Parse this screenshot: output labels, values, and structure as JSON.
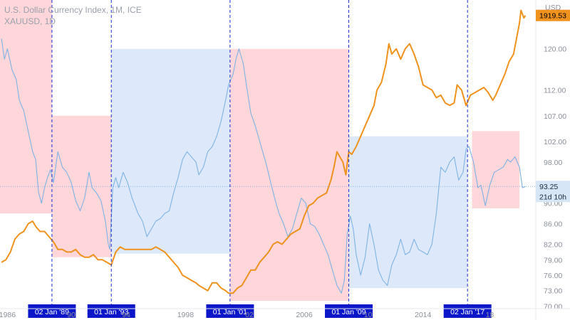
{
  "chart_data": {
    "type": "line",
    "title": "U.S. Dollar Currency Index, 1M, ICE",
    "subtitle": "XAUUSD, 1D",
    "currency_label": "USD",
    "x_range": [
      1985.5,
      2021.6
    ],
    "y_range": [
      69.5,
      129.5
    ],
    "y_ticks": [
      {
        "value": 73.0,
        "label": "73.00"
      },
      {
        "value": 76.0,
        "label": "76.00"
      },
      {
        "value": 79.0,
        "label": "79.00"
      },
      {
        "value": 82.0,
        "label": "82.00"
      },
      {
        "value": 86.0,
        "label": "86.00"
      },
      {
        "value": 90.0,
        "label": "90.00"
      },
      {
        "value": 98.0,
        "label": "98.00"
      },
      {
        "value": 102.0,
        "label": "102.00"
      },
      {
        "value": 107.0,
        "label": "107.00"
      },
      {
        "value": 112.0,
        "label": "112.00"
      },
      {
        "value": 120.0,
        "label": "120.00"
      },
      {
        "value": 70.0,
        "label": "70.00"
      }
    ],
    "x_ticks": [
      {
        "value": 1986.0,
        "label": "1986"
      },
      {
        "value": 1998.0,
        "label": "1998"
      },
      {
        "value": 2006.0,
        "label": "2006"
      },
      {
        "value": 2014.0,
        "label": "2014"
      }
    ],
    "x_ticks_partial": [
      {
        "value": 1990.3,
        "label": "90"
      },
      {
        "value": 1994.0,
        "label": "94"
      },
      {
        "value": 2002.3,
        "label": "02"
      },
      {
        "value": 2010.3,
        "label": "10"
      },
      {
        "value": 2018.5,
        "label": "18"
      }
    ],
    "markers": [
      {
        "label": "02 Jan '89",
        "x": 1989.0
      },
      {
        "label": "01 Jan '93",
        "x": 1993.0
      },
      {
        "label": "01 Jan '01",
        "x": 2001.0
      },
      {
        "label": "01 Jan '09",
        "x": 2009.0
      },
      {
        "label": "02 Jan '17",
        "x": 2017.0
      }
    ],
    "regions": [
      {
        "x0": 1985.5,
        "x1": 1989.0,
        "y0": 88.0,
        "y1": 131.0,
        "color": "#ffd6da"
      },
      {
        "x0": 1989.0,
        "x1": 1993.0,
        "y0": 79.5,
        "y1": 107.0,
        "color": "#ffd6da"
      },
      {
        "x0": 1993.0,
        "x1": 2001.0,
        "y0": 80.2,
        "y1": 120.0,
        "color": "#dde9fa"
      },
      {
        "x0": 2001.0,
        "x1": 2009.0,
        "y0": 71.0,
        "y1": 120.0,
        "color": "#ffd6da"
      },
      {
        "x0": 2009.0,
        "x1": 2017.0,
        "y0": 73.5,
        "y1": 103.0,
        "color": "#dde9fa"
      },
      {
        "x0": 2017.3,
        "x1": 2020.5,
        "y0": 89.0,
        "y1": 104.0,
        "color": "#ffd6da"
      }
    ],
    "series": [
      {
        "name": "U.S. Dollar Currency Index, 1M, ICE",
        "color": "#7fb3e3",
        "points": [
          [
            1985.6,
            122.0
          ],
          [
            1985.8,
            118.0
          ],
          [
            1986.0,
            120.0
          ],
          [
            1986.3,
            116.0
          ],
          [
            1986.6,
            114.0
          ],
          [
            1986.8,
            110.0
          ],
          [
            1987.1,
            108.0
          ],
          [
            1987.4,
            104.0
          ],
          [
            1987.7,
            100.0
          ],
          [
            1987.9,
            98.5
          ],
          [
            1988.1,
            92.0
          ],
          [
            1988.3,
            90.0
          ],
          [
            1988.5,
            93.0
          ],
          [
            1988.7,
            95.0
          ],
          [
            1988.9,
            96.5
          ],
          [
            1989.1,
            94.0
          ],
          [
            1989.4,
            100.0
          ],
          [
            1989.7,
            97.0
          ],
          [
            1990.0,
            96.0
          ],
          [
            1990.3,
            94.0
          ],
          [
            1990.6,
            90.5
          ],
          [
            1990.9,
            88.5
          ],
          [
            1991.2,
            91.0
          ],
          [
            1991.5,
            96.0
          ],
          [
            1991.7,
            93.0
          ],
          [
            1992.0,
            92.0
          ],
          [
            1992.3,
            90.5
          ],
          [
            1992.6,
            86.5
          ],
          [
            1992.8,
            82.0
          ],
          [
            1992.9,
            81.0
          ],
          [
            1993.1,
            93.0
          ],
          [
            1993.3,
            95.0
          ],
          [
            1993.5,
            93.0
          ],
          [
            1993.8,
            96.0
          ],
          [
            1994.1,
            94.0
          ],
          [
            1994.4,
            91.0
          ],
          [
            1994.8,
            88.0
          ],
          [
            1995.1,
            86.5
          ],
          [
            1995.4,
            83.5
          ],
          [
            1995.7,
            85.0
          ],
          [
            1996.0,
            86.5
          ],
          [
            1996.3,
            87.0
          ],
          [
            1996.6,
            88.0
          ],
          [
            1996.9,
            88.5
          ],
          [
            1997.2,
            92.0
          ],
          [
            1997.5,
            95.0
          ],
          [
            1997.8,
            98.5
          ],
          [
            1998.1,
            100.0
          ],
          [
            1998.4,
            99.0
          ],
          [
            1998.7,
            98.0
          ],
          [
            1998.9,
            95.5
          ],
          [
            1999.2,
            97.0
          ],
          [
            1999.5,
            100.0
          ],
          [
            1999.8,
            101.0
          ],
          [
            2000.1,
            103.0
          ],
          [
            2000.4,
            106.0
          ],
          [
            2000.7,
            110.0
          ],
          [
            2000.9,
            113.0
          ],
          [
            2001.2,
            115.0
          ],
          [
            2001.4,
            118.0
          ],
          [
            2001.6,
            120.0
          ],
          [
            2001.9,
            117.0
          ],
          [
            2002.1,
            113.0
          ],
          [
            2002.4,
            107.5
          ],
          [
            2002.7,
            105.0
          ],
          [
            2002.9,
            103.0
          ],
          [
            2003.2,
            100.0
          ],
          [
            2003.4,
            98.0
          ],
          [
            2003.7,
            94.5
          ],
          [
            2004.0,
            91.0
          ],
          [
            2004.3,
            88.0
          ],
          [
            2004.6,
            86.0
          ],
          [
            2004.9,
            83.5
          ],
          [
            2005.2,
            85.0
          ],
          [
            2005.5,
            88.0
          ],
          [
            2005.8,
            91.0
          ],
          [
            2006.1,
            90.0
          ],
          [
            2006.4,
            86.0
          ],
          [
            2006.7,
            85.5
          ],
          [
            2007.0,
            84.0
          ],
          [
            2007.3,
            82.0
          ],
          [
            2007.6,
            80.0
          ],
          [
            2007.9,
            77.0
          ],
          [
            2008.2,
            74.0
          ],
          [
            2008.5,
            72.5
          ],
          [
            2008.7,
            75.0
          ],
          [
            2008.9,
            84.0
          ],
          [
            2009.1,
            87.5
          ],
          [
            2009.3,
            85.0
          ],
          [
            2009.5,
            80.0
          ],
          [
            2009.8,
            76.0
          ],
          [
            2010.1,
            79.5
          ],
          [
            2010.4,
            86.0
          ],
          [
            2010.7,
            82.0
          ],
          [
            2011.0,
            77.0
          ],
          [
            2011.3,
            75.0
          ],
          [
            2011.6,
            74.0
          ],
          [
            2011.9,
            78.0
          ],
          [
            2012.2,
            80.0
          ],
          [
            2012.5,
            83.0
          ],
          [
            2012.8,
            80.0
          ],
          [
            2013.1,
            80.5
          ],
          [
            2013.4,
            83.0
          ],
          [
            2013.7,
            81.0
          ],
          [
            2014.0,
            80.5
          ],
          [
            2014.3,
            80.0
          ],
          [
            2014.6,
            82.0
          ],
          [
            2014.9,
            88.0
          ],
          [
            2015.2,
            97.0
          ],
          [
            2015.5,
            96.0
          ],
          [
            2015.8,
            98.0
          ],
          [
            2016.1,
            99.0
          ],
          [
            2016.4,
            94.5
          ],
          [
            2016.7,
            96.0
          ],
          [
            2016.9,
            100.5
          ],
          [
            2017.1,
            101.0
          ],
          [
            2017.4,
            98.0
          ],
          [
            2017.7,
            93.0
          ],
          [
            2017.9,
            93.5
          ],
          [
            2018.2,
            89.5
          ],
          [
            2018.5,
            93.5
          ],
          [
            2018.8,
            96.0
          ],
          [
            2019.1,
            96.5
          ],
          [
            2019.4,
            97.0
          ],
          [
            2019.7,
            98.5
          ],
          [
            2019.9,
            98.0
          ],
          [
            2020.2,
            99.0
          ],
          [
            2020.5,
            97.0
          ],
          [
            2020.7,
            93.0
          ],
          [
            2020.9,
            93.25
          ]
        ]
      },
      {
        "name": "XAUUSD, 1D",
        "color": "#f0921e",
        "points": [
          [
            1985.6,
            78.5
          ],
          [
            1985.9,
            79.0
          ],
          [
            1986.2,
            80.5
          ],
          [
            1986.5,
            83.0
          ],
          [
            1986.8,
            84.0
          ],
          [
            1987.1,
            84.5
          ],
          [
            1987.4,
            86.0
          ],
          [
            1987.7,
            86.5
          ],
          [
            1987.9,
            85.5
          ],
          [
            1988.2,
            84.5
          ],
          [
            1988.5,
            84.5
          ],
          [
            1988.8,
            83.5
          ],
          [
            1989.1,
            82.5
          ],
          [
            1989.4,
            81.0
          ],
          [
            1989.7,
            81.0
          ],
          [
            1990.0,
            80.5
          ],
          [
            1990.3,
            80.5
          ],
          [
            1990.6,
            81.0
          ],
          [
            1990.9,
            80.0
          ],
          [
            1991.2,
            79.5
          ],
          [
            1991.5,
            79.5
          ],
          [
            1991.8,
            80.0
          ],
          [
            1992.1,
            79.0
          ],
          [
            1992.4,
            79.0
          ],
          [
            1992.7,
            78.5
          ],
          [
            1993.0,
            78.0
          ],
          [
            1993.3,
            80.5
          ],
          [
            1993.6,
            81.5
          ],
          [
            1993.9,
            81.0
          ],
          [
            1994.2,
            81.0
          ],
          [
            1994.5,
            81.0
          ],
          [
            1994.8,
            81.0
          ],
          [
            1995.1,
            81.0
          ],
          [
            1995.4,
            81.0
          ],
          [
            1995.7,
            81.0
          ],
          [
            1996.0,
            81.5
          ],
          [
            1996.3,
            81.0
          ],
          [
            1996.6,
            80.5
          ],
          [
            1996.9,
            79.5
          ],
          [
            1997.2,
            78.5
          ],
          [
            1997.5,
            77.5
          ],
          [
            1997.8,
            76.0
          ],
          [
            1998.1,
            75.5
          ],
          [
            1998.4,
            75.0
          ],
          [
            1998.7,
            74.5
          ],
          [
            1998.9,
            74.0
          ],
          [
            1999.2,
            73.5
          ],
          [
            1999.5,
            73.0
          ],
          [
            1999.8,
            74.5
          ],
          [
            2000.1,
            74.5
          ],
          [
            2000.4,
            73.5
          ],
          [
            2000.7,
            73.0
          ],
          [
            2000.9,
            72.5
          ],
          [
            2001.2,
            72.5
          ],
          [
            2001.5,
            73.5
          ],
          [
            2001.8,
            74.0
          ],
          [
            2002.1,
            75.5
          ],
          [
            2002.4,
            77.0
          ],
          [
            2002.7,
            77.0
          ],
          [
            2003.0,
            78.5
          ],
          [
            2003.3,
            79.5
          ],
          [
            2003.6,
            80.5
          ],
          [
            2003.9,
            82.0
          ],
          [
            2004.2,
            82.5
          ],
          [
            2004.5,
            82.0
          ],
          [
            2004.8,
            83.0
          ],
          [
            2005.1,
            84.0
          ],
          [
            2005.4,
            84.5
          ],
          [
            2005.7,
            85.0
          ],
          [
            2006.0,
            87.5
          ],
          [
            2006.3,
            89.5
          ],
          [
            2006.6,
            90.0
          ],
          [
            2006.9,
            91.0
          ],
          [
            2007.2,
            91.5
          ],
          [
            2007.5,
            92.0
          ],
          [
            2007.8,
            94.5
          ],
          [
            2008.0,
            97.0
          ],
          [
            2008.2,
            100.0
          ],
          [
            2008.4,
            99.0
          ],
          [
            2008.6,
            98.0
          ],
          [
            2008.8,
            95.5
          ],
          [
            2009.0,
            100.0
          ],
          [
            2009.2,
            99.5
          ],
          [
            2009.5,
            101.0
          ],
          [
            2009.8,
            103.0
          ],
          [
            2010.1,
            105.0
          ],
          [
            2010.4,
            107.0
          ],
          [
            2010.7,
            109.0
          ],
          [
            2010.9,
            112.0
          ],
          [
            2011.2,
            113.5
          ],
          [
            2011.5,
            117.0
          ],
          [
            2011.7,
            121.0
          ],
          [
            2011.9,
            119.0
          ],
          [
            2012.2,
            120.0
          ],
          [
            2012.5,
            118.0
          ],
          [
            2012.8,
            120.0
          ],
          [
            2013.1,
            121.0
          ],
          [
            2013.4,
            119.0
          ],
          [
            2013.7,
            116.5
          ],
          [
            2014.0,
            113.0
          ],
          [
            2014.3,
            112.5
          ],
          [
            2014.6,
            112.0
          ],
          [
            2014.9,
            110.5
          ],
          [
            2015.2,
            111.0
          ],
          [
            2015.5,
            109.5
          ],
          [
            2015.8,
            109.0
          ],
          [
            2016.1,
            109.5
          ],
          [
            2016.3,
            113.0
          ],
          [
            2016.6,
            112.0
          ],
          [
            2016.9,
            109.0
          ],
          [
            2017.2,
            111.0
          ],
          [
            2017.5,
            111.5
          ],
          [
            2017.8,
            112.0
          ],
          [
            2018.1,
            112.5
          ],
          [
            2018.4,
            111.5
          ],
          [
            2018.7,
            110.0
          ],
          [
            2018.9,
            111.0
          ],
          [
            2019.2,
            113.0
          ],
          [
            2019.5,
            115.0
          ],
          [
            2019.8,
            117.5
          ],
          [
            2020.1,
            119.0
          ],
          [
            2020.3,
            122.0
          ],
          [
            2020.5,
            125.0
          ],
          [
            2020.6,
            127.5
          ],
          [
            2020.8,
            126.0
          ],
          [
            2020.9,
            126.5
          ]
        ]
      }
    ],
    "last_value_badges": [
      {
        "label": "1919.53",
        "y": 126.5,
        "color": "#f0921e",
        "text_color": "#000000"
      },
      {
        "label": "93.25",
        "y": 93.25,
        "color": "#d6e6f7",
        "text_color": "#1b2a3a"
      },
      {
        "label": "21d 10h",
        "y": 91.3,
        "color": "#d6e6f7",
        "text_color": "#1b2a3a"
      }
    ],
    "current_price_line": 93.25
  }
}
